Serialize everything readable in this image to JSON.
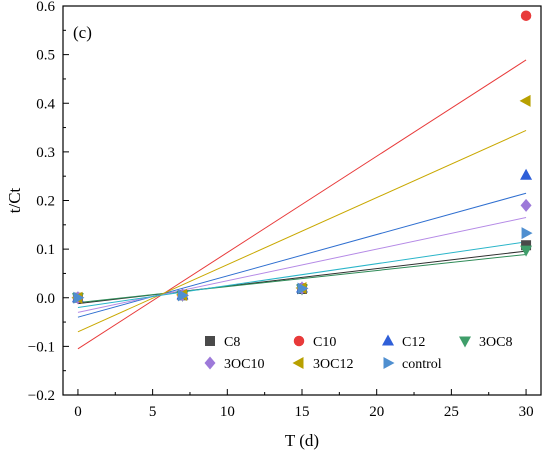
{
  "chart_data": {
    "type": "scatter",
    "panel_label": "(c)",
    "xlabel": "T (d)",
    "ylabel": "t/Ct",
    "xlim": [
      -1,
      31
    ],
    "ylim": [
      -0.2,
      0.6
    ],
    "xticks": [
      0,
      5,
      10,
      15,
      20,
      25,
      30
    ],
    "yticks": [
      -0.2,
      -0.1,
      0.0,
      0.1,
      0.2,
      0.3,
      0.4,
      0.5,
      0.6
    ],
    "ytick_labels": [
      "−0.2",
      "−0.1",
      "0.0",
      "0.1",
      "0.2",
      "0.3",
      "0.4",
      "0.5",
      "0.6"
    ],
    "grid": false,
    "legend_position": "bottom-right",
    "series": [
      {
        "name": "C8",
        "marker": "square",
        "color": "#4a4a4a",
        "line_color": "#2f2f2f",
        "x": [
          0,
          7,
          15,
          30
        ],
        "y": [
          0.0,
          0.005,
          0.018,
          0.108
        ],
        "fit": [
          -0.012,
          0.0036
        ]
      },
      {
        "name": "C10",
        "marker": "circle",
        "color": "#e83a3a",
        "line_color": "#e83a3a",
        "x": [
          0,
          7,
          15,
          30
        ],
        "y": [
          0.0,
          0.006,
          0.02,
          0.58
        ],
        "fit": [
          -0.105,
          0.0198
        ]
      },
      {
        "name": "C12",
        "marker": "triangle-up",
        "color": "#2f5fd8",
        "line_color": "#2f6fd0",
        "x": [
          0,
          7,
          15,
          30
        ],
        "y": [
          0.0,
          0.006,
          0.02,
          0.252
        ],
        "fit": [
          -0.04,
          0.0085
        ]
      },
      {
        "name": "3OC8",
        "marker": "triangle-down",
        "color": "#3f9e6a",
        "line_color": "#2e8b57",
        "x": [
          0,
          7,
          15,
          30
        ],
        "y": [
          0.0,
          0.005,
          0.018,
          0.098
        ],
        "fit": [
          -0.01,
          0.0033
        ]
      },
      {
        "name": "3OC10",
        "marker": "diamond",
        "color": "#9d79d9",
        "line_color": "#b58ae6",
        "x": [
          0,
          7,
          15,
          30
        ],
        "y": [
          0.0,
          0.006,
          0.02,
          0.19
        ],
        "fit": [
          -0.03,
          0.0065
        ]
      },
      {
        "name": "3OC12",
        "marker": "triangle-left",
        "color": "#b8a000",
        "line_color": "#c9a800",
        "x": [
          0,
          7,
          15,
          30
        ],
        "y": [
          0.0,
          0.006,
          0.02,
          0.405
        ],
        "fit": [
          -0.07,
          0.0138
        ]
      },
      {
        "name": "control",
        "marker": "triangle-right",
        "color": "#4f8fd0",
        "line_color": "#2ab5c9",
        "x": [
          0,
          7,
          15,
          30
        ],
        "y": [
          0.0,
          0.005,
          0.019,
          0.133
        ],
        "fit": [
          -0.02,
          0.0045
        ]
      }
    ]
  }
}
